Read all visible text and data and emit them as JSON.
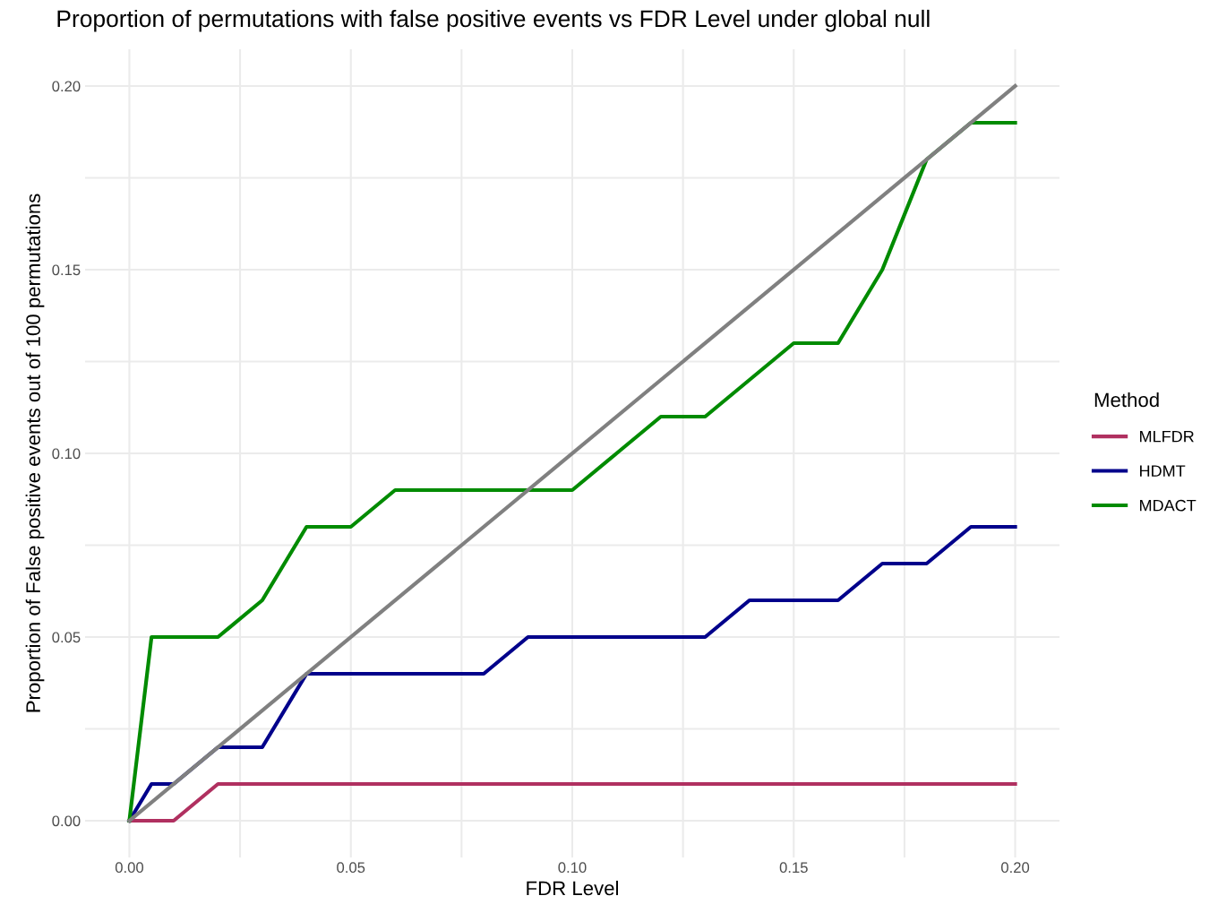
{
  "chart_data": {
    "type": "line",
    "title": "Proportion of permutations with false positive events vs FDR Level under global null",
    "xlabel": "FDR Level",
    "ylabel": "Proportion of False positive events out of 100 permutations",
    "legend_title": "Method",
    "legend": "right",
    "grid": true,
    "line_style": "solid",
    "marker": "none",
    "x": [
      0,
      0.005,
      0.01,
      0.02,
      0.03,
      0.04,
      0.05,
      0.06,
      0.07,
      0.08,
      0.09,
      0.1,
      0.11,
      0.12,
      0.13,
      0.14,
      0.15,
      0.16,
      0.17,
      0.18,
      0.19,
      0.2
    ],
    "series": [
      {
        "name": "MLFDR",
        "color": "#b03060",
        "values": [
          0,
          0,
          0,
          0.01,
          0.01,
          0.01,
          0.01,
          0.01,
          0.01,
          0.01,
          0.01,
          0.01,
          0.01,
          0.01,
          0.01,
          0.01,
          0.01,
          0.01,
          0.01,
          0.01,
          0.01,
          0.01
        ]
      },
      {
        "name": "HDMT",
        "color": "#00008b",
        "values": [
          0,
          0.01,
          0.01,
          0.02,
          0.02,
          0.04,
          0.04,
          0.04,
          0.04,
          0.04,
          0.05,
          0.05,
          0.05,
          0.05,
          0.05,
          0.06,
          0.06,
          0.06,
          0.07,
          0.07,
          0.08,
          0.08
        ]
      },
      {
        "name": "MDACT",
        "color": "#008b00",
        "values": [
          0,
          0.05,
          0.05,
          0.05,
          0.06,
          0.08,
          0.08,
          0.09,
          0.09,
          0.09,
          0.09,
          0.09,
          0.1,
          0.11,
          0.11,
          0.12,
          0.13,
          0.13,
          0.15,
          0.18,
          0.19,
          0.19
        ]
      },
      {
        "color": "#808080",
        "x": [
          0,
          0.2
        ],
        "values": [
          0,
          0.2
        ]
      }
    ],
    "xlim": [
      -0.01,
      0.21
    ],
    "ylim": [
      -0.01,
      0.21
    ],
    "xticks": [
      {
        "value": 0,
        "label": "0.00"
      },
      {
        "value": 0.025,
        "label": null
      },
      {
        "value": 0.05,
        "label": "0.05"
      },
      {
        "value": 0.075,
        "label": null
      },
      {
        "value": 0.1,
        "label": "0.10"
      },
      {
        "value": 0.125,
        "label": null
      },
      {
        "value": 0.15,
        "label": "0.15"
      },
      {
        "value": 0.175,
        "label": null
      },
      {
        "value": 0.2,
        "label": "0.20"
      }
    ],
    "yticks": [
      {
        "value": 0,
        "label": "0.00"
      },
      {
        "value": 0.025,
        "label": null
      },
      {
        "value": 0.05,
        "label": "0.05"
      },
      {
        "value": 0.075,
        "label": null
      },
      {
        "value": 0.1,
        "label": "0.10"
      },
      {
        "value": 0.125,
        "label": null
      },
      {
        "value": 0.15,
        "label": "0.15"
      },
      {
        "value": 0.175,
        "label": null
      },
      {
        "value": 0.2,
        "label": "0.20"
      }
    ]
  }
}
